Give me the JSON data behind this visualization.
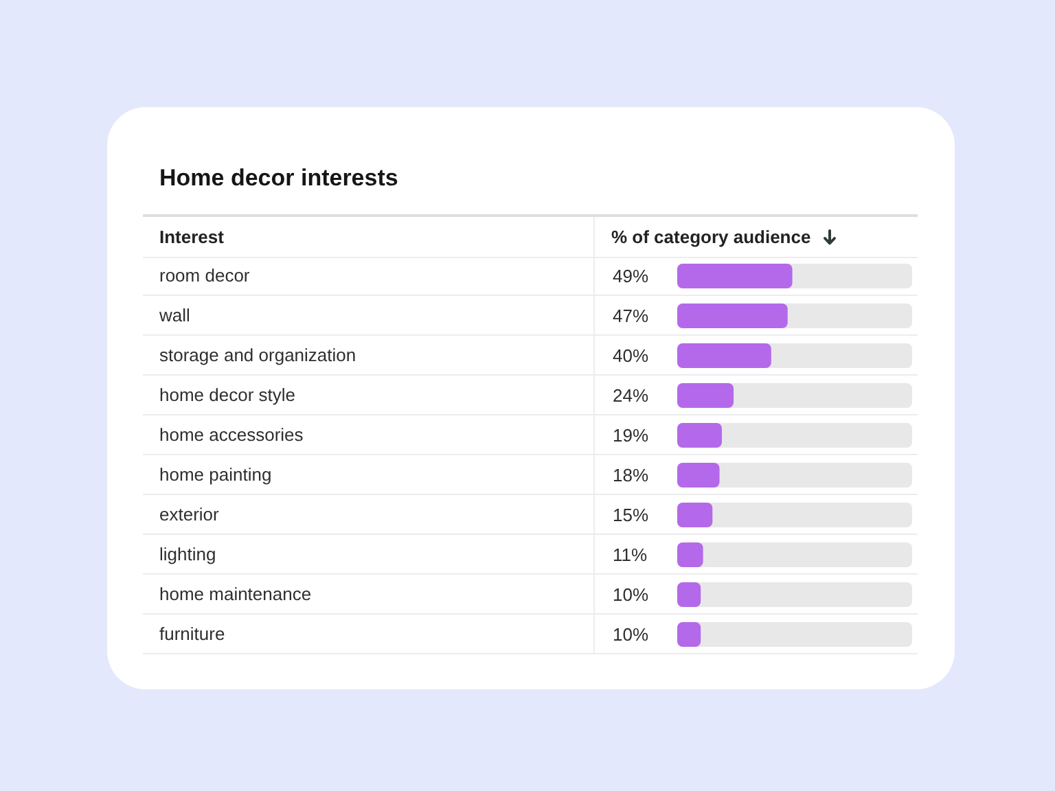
{
  "chart_data": {
    "type": "bar",
    "orientation": "horizontal",
    "title": "Home decor interests",
    "ylabel": "Interest",
    "xlabel": "% of category audience",
    "categories": [
      "room decor",
      "wall",
      "storage and organization",
      "home decor style",
      "home accessories",
      "home painting",
      "exterior",
      "lighting",
      "home maintenance",
      "furniture"
    ],
    "values": [
      49,
      47,
      40,
      24,
      19,
      18,
      15,
      11,
      10,
      10
    ],
    "value_labels": [
      "49%",
      "47%",
      "40%",
      "24%",
      "19%",
      "18%",
      "15%",
      "11%",
      "10%",
      "10%"
    ],
    "color": "#b469ea",
    "xlim": [
      0,
      100
    ],
    "grid": "y",
    "tick_labels": "y"
  }
}
